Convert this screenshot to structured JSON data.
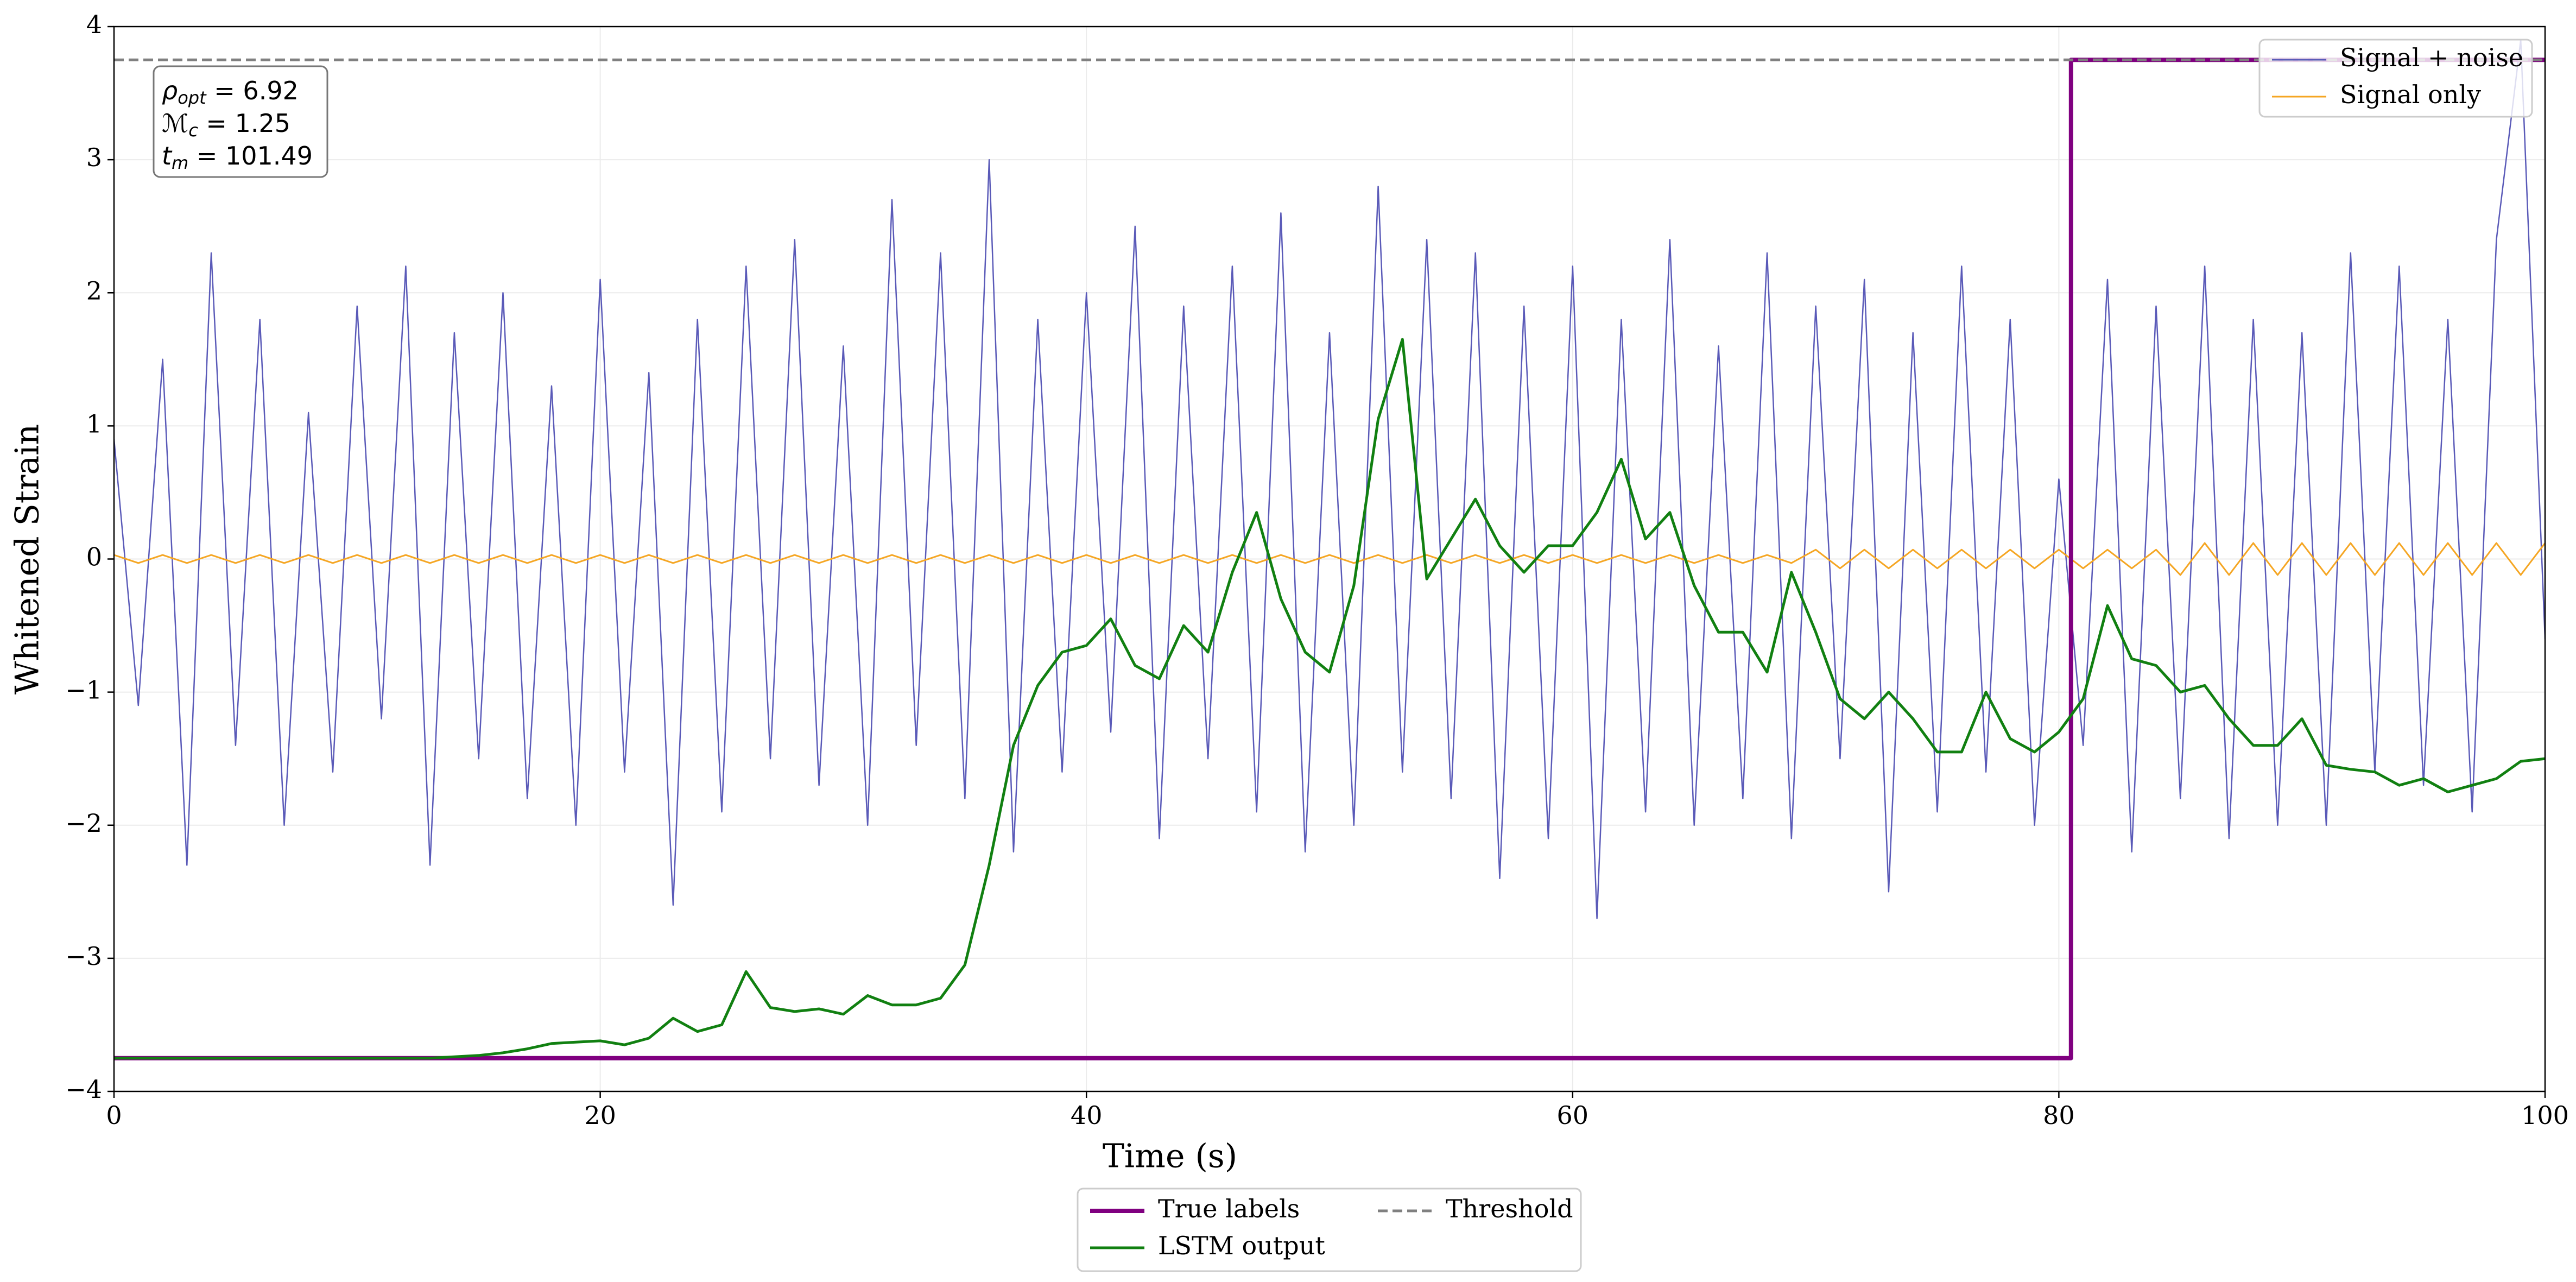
{
  "chart_data": {
    "type": "line",
    "xlabel": "Time (s)",
    "ylabel": "Whitened Strain",
    "xlim": [
      0,
      100
    ],
    "ylim": [
      -4,
      4
    ],
    "xticks": [
      0,
      20,
      40,
      60,
      80,
      100
    ],
    "yticks": [
      {
        "value": -4,
        "label": "−4"
      },
      {
        "value": -3,
        "label": "−3"
      },
      {
        "value": -2,
        "label": "−2"
      },
      {
        "value": -1,
        "label": "−1"
      },
      0,
      1,
      2,
      3,
      4
    ],
    "grid": true,
    "annotation": [
      {
        "symbol": "ρ",
        "sub": "opt",
        "text": " = 6.92"
      },
      {
        "symbol": "ℳ",
        "sub": "c",
        "text": " = 1.25"
      },
      {
        "symbol": "t",
        "sub": "m",
        "text": " = 101.49"
      }
    ],
    "x": [
      0,
      1,
      2,
      3,
      4,
      5,
      6,
      7,
      8,
      9,
      10,
      11,
      12,
      13,
      14,
      15,
      16,
      17,
      18,
      19,
      20,
      21,
      22,
      23,
      24,
      25,
      26,
      27,
      28,
      29,
      30,
      31,
      32,
      33,
      34,
      35,
      36,
      37,
      38,
      39,
      40,
      41,
      42,
      43,
      44,
      45,
      46,
      47,
      48,
      49,
      50,
      51,
      52,
      53,
      54,
      55,
      56,
      57,
      58,
      59,
      60,
      61,
      62,
      63,
      64,
      65,
      66,
      67,
      68,
      69,
      70,
      71,
      72,
      73,
      74,
      75,
      76,
      77,
      78,
      79,
      80,
      81,
      82,
      83,
      84,
      85,
      86,
      87,
      88,
      89,
      90,
      91,
      92,
      93,
      94,
      95,
      96,
      97,
      98,
      99,
      100
    ],
    "series": [
      {
        "name": "Signal + noise",
        "color": "#5a5ab8",
        "width": 2.5,
        "legend": "upper right",
        "values": [
          0.9,
          -1.1,
          1.5,
          -2.3,
          2.3,
          -1.4,
          1.8,
          -2.0,
          1.1,
          -1.6,
          1.9,
          -1.2,
          2.2,
          -2.3,
          1.7,
          -1.5,
          2.0,
          -1.8,
          1.3,
          -2.0,
          2.1,
          -1.6,
          1.4,
          -2.6,
          1.8,
          -1.9,
          2.2,
          -1.5,
          2.4,
          -1.7,
          1.6,
          -2.0,
          2.7,
          -1.4,
          2.3,
          -1.8,
          3.0,
          -2.2,
          1.8,
          -1.6,
          2.0,
          -1.3,
          2.5,
          -2.1,
          1.9,
          -1.5,
          2.2,
          -1.9,
          2.6,
          -2.2,
          1.7,
          -2.0,
          2.8,
          -1.6,
          2.4,
          -1.8,
          2.3,
          -2.4,
          1.9,
          -2.1,
          2.2,
          -2.7,
          1.8,
          -1.9,
          2.4,
          -2.0,
          1.6,
          -1.8,
          2.3,
          -2.1,
          1.9,
          -1.5,
          2.1,
          -2.5,
          1.7,
          -1.9,
          2.2,
          -1.6,
          1.8,
          -2.0,
          0.6,
          -1.4,
          2.1,
          -2.2,
          1.9,
          -1.8,
          2.2,
          -2.1,
          1.8,
          -2.0,
          1.7,
          -2.0,
          2.3,
          -1.6,
          2.2,
          -1.7,
          1.8,
          -1.9,
          2.4,
          3.9,
          -0.6
        ]
      },
      {
        "name": "Signal only",
        "color": "#f5a623",
        "width": 3,
        "legend": "upper right",
        "values": [
          0.03,
          -0.03,
          0.03,
          -0.03,
          0.03,
          -0.03,
          0.03,
          -0.03,
          0.03,
          -0.03,
          0.03,
          -0.03,
          0.03,
          -0.03,
          0.03,
          -0.03,
          0.03,
          -0.03,
          0.03,
          -0.03,
          0.03,
          -0.03,
          0.03,
          -0.03,
          0.03,
          -0.03,
          0.03,
          -0.03,
          0.03,
          -0.03,
          0.03,
          -0.03,
          0.03,
          -0.03,
          0.03,
          -0.03,
          0.03,
          -0.03,
          0.03,
          -0.03,
          0.03,
          -0.03,
          0.03,
          -0.03,
          0.03,
          -0.03,
          0.03,
          -0.03,
          0.03,
          -0.03,
          0.03,
          -0.03,
          0.03,
          -0.03,
          0.03,
          -0.03,
          0.03,
          -0.03,
          0.03,
          -0.03,
          0.03,
          -0.03,
          0.03,
          -0.03,
          0.03,
          -0.03,
          0.03,
          -0.03,
          0.03,
          -0.03,
          0.07,
          -0.07,
          0.07,
          -0.07,
          0.07,
          -0.07,
          0.07,
          -0.07,
          0.07,
          -0.07,
          0.07,
          -0.07,
          0.07,
          -0.07,
          0.07,
          -0.12,
          0.12,
          -0.12,
          0.12,
          -0.12,
          0.12,
          -0.12,
          0.12,
          -0.12,
          0.12,
          -0.12,
          0.12,
          -0.12,
          0.12,
          -0.12,
          0.12
        ]
      },
      {
        "name": "True labels",
        "color": "#800080",
        "width": 8,
        "legend": "below",
        "x": [
          0,
          80.5,
          80.5,
          100
        ],
        "values": [
          -3.75,
          -3.75,
          3.75,
          3.75
        ]
      },
      {
        "name": "LSTM output",
        "color": "#118011",
        "width": 5,
        "legend": "below",
        "values": [
          -3.75,
          -3.75,
          -3.75,
          -3.75,
          -3.75,
          -3.75,
          -3.75,
          -3.75,
          -3.75,
          -3.75,
          -3.75,
          -3.75,
          -3.75,
          -3.75,
          -3.74,
          -3.73,
          -3.71,
          -3.68,
          -3.64,
          -3.63,
          -3.62,
          -3.65,
          -3.6,
          -3.45,
          -3.55,
          -3.5,
          -3.1,
          -3.37,
          -3.4,
          -3.38,
          -3.42,
          -3.28,
          -3.35,
          -3.35,
          -3.3,
          -3.05,
          -2.3,
          -1.4,
          -0.95,
          -0.7,
          -0.65,
          -0.45,
          -0.8,
          -0.9,
          -0.5,
          -0.7,
          -0.1,
          0.35,
          -0.3,
          -0.7,
          -0.85,
          -0.2,
          1.05,
          1.65,
          -0.15,
          0.15,
          0.45,
          0.1,
          -0.1,
          0.1,
          0.1,
          0.35,
          0.75,
          0.15,
          0.35,
          -0.2,
          -0.55,
          -0.55,
          -0.85,
          -0.1,
          -0.55,
          -1.05,
          -1.2,
          -1.0,
          -1.2,
          -1.45,
          -1.45,
          -1.0,
          -1.35,
          -1.45,
          -1.3,
          -1.05,
          -0.35,
          -0.75,
          -0.8,
          -1.0,
          -0.95,
          -1.2,
          -1.4,
          -1.4,
          -1.2,
          -1.55,
          -1.58,
          -1.6,
          -1.7,
          -1.65,
          -1.75,
          -1.7,
          -1.65,
          -1.52,
          -1.5
        ]
      },
      {
        "name": "Threshold",
        "color": "#808080",
        "width": 5,
        "dash": true,
        "legend": "below",
        "x": [
          0,
          100
        ],
        "values": [
          3.75,
          3.75
        ]
      }
    ]
  }
}
